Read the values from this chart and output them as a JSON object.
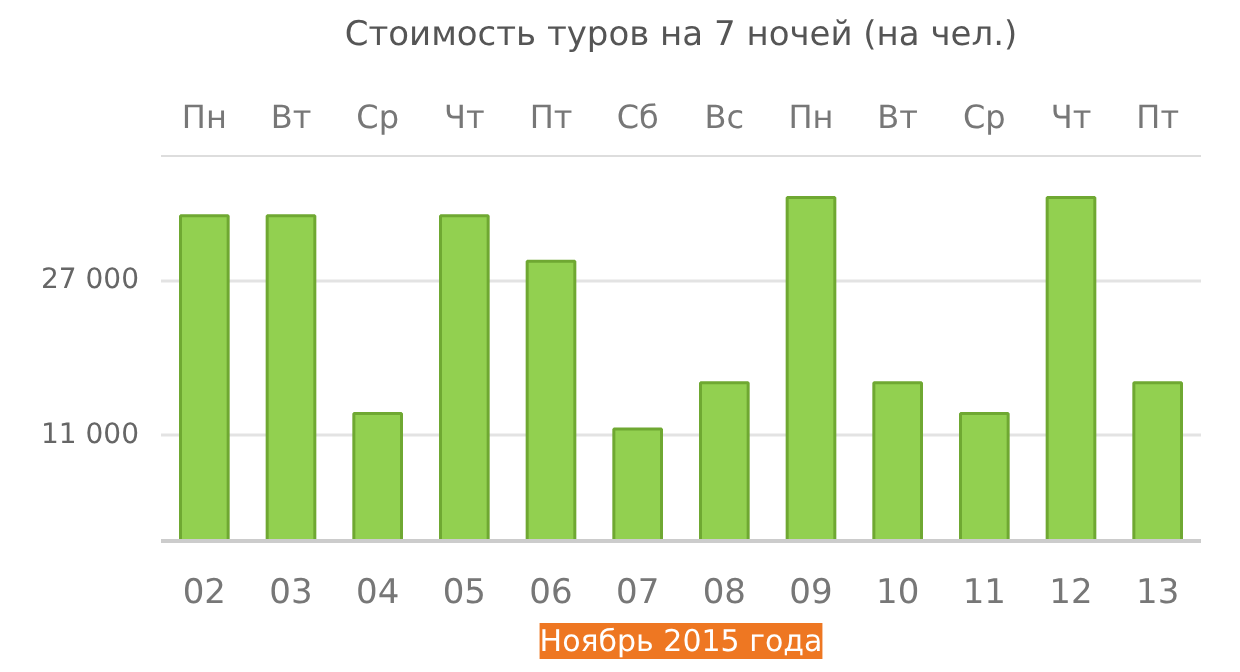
{
  "chart_data": {
    "type": "bar",
    "title": "Стоимость туров на 7 ночей (на чел.)",
    "xlabel": "Ноябрь 2015 года",
    "categories": [
      "02",
      "03",
      "04",
      "05",
      "06",
      "07",
      "08",
      "09",
      "10",
      "11",
      "12",
      "13"
    ],
    "values": [
      33700,
      33700,
      13200,
      33700,
      29000,
      11600,
      16400,
      35600,
      16400,
      13200,
      35600,
      16400
    ],
    "color": "#92d050",
    "ylim": [
      0,
      40000
    ],
    "yticks": [
      {
        "value": 11000,
        "label": "11 000"
      },
      {
        "value": 27000,
        "label": "27 000"
      }
    ],
    "annotations": [
      "Пн",
      "Вт",
      "Ср",
      "Чт",
      "Пт",
      "Сб",
      "Вс",
      "Пн",
      "Вт",
      "Ср",
      "Чт",
      "Пт"
    ],
    "grid": "y"
  }
}
